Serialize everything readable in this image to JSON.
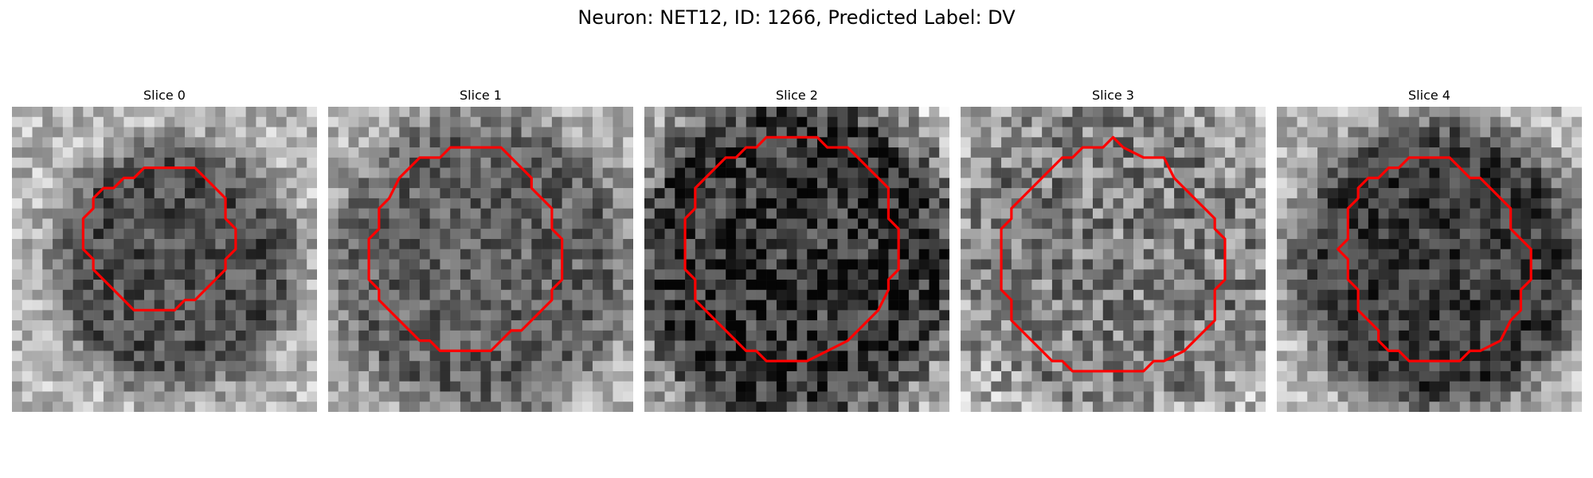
{
  "figure": {
    "title": "Neuron: NET12, ID: 1266, Predicted Label: DV"
  },
  "panels": [
    {
      "title": "Slice 0",
      "seed": 11,
      "contrast": "medium",
      "blob_darkness": 0.55,
      "blob_center": [
        0.53,
        0.52
      ],
      "blob_radius": 0.34,
      "roi_outline": [
        [
          15,
          6
        ],
        [
          18,
          6
        ],
        [
          21,
          9
        ],
        [
          21,
          11
        ],
        [
          22,
          12
        ],
        [
          22,
          14
        ],
        [
          21,
          15
        ],
        [
          21,
          16
        ],
        [
          18,
          19
        ],
        [
          17,
          19
        ],
        [
          16,
          20
        ],
        [
          13,
          20
        ],
        [
          12,
          20
        ],
        [
          10,
          18
        ],
        [
          9,
          17
        ],
        [
          8,
          16
        ],
        [
          8,
          15
        ],
        [
          7,
          14
        ],
        [
          7,
          11
        ],
        [
          8,
          10
        ],
        [
          8,
          9
        ],
        [
          9,
          8
        ],
        [
          10,
          8
        ],
        [
          11,
          7
        ],
        [
          12,
          7
        ],
        [
          13,
          6
        ]
      ]
    },
    {
      "title": "Slice 1",
      "seed": 23,
      "contrast": "medium",
      "blob_darkness": 0.45,
      "blob_center": [
        0.5,
        0.52
      ],
      "blob_radius": 0.42,
      "roi_outline": [
        [
          14,
          4
        ],
        [
          17,
          4
        ],
        [
          18,
          5
        ],
        [
          19,
          6
        ],
        [
          20,
          7
        ],
        [
          20,
          8
        ],
        [
          21,
          9
        ],
        [
          22,
          10
        ],
        [
          22,
          12
        ],
        [
          23,
          13
        ],
        [
          23,
          17
        ],
        [
          22,
          18
        ],
        [
          22,
          19
        ],
        [
          21,
          20
        ],
        [
          20,
          21
        ],
        [
          19,
          22
        ],
        [
          18,
          22
        ],
        [
          17,
          23
        ],
        [
          16,
          24
        ],
        [
          11,
          24
        ],
        [
          10,
          23
        ],
        [
          9,
          23
        ],
        [
          8,
          22
        ],
        [
          7,
          21
        ],
        [
          6,
          20
        ],
        [
          5,
          19
        ],
        [
          5,
          18
        ],
        [
          4,
          17
        ],
        [
          4,
          13
        ],
        [
          5,
          12
        ],
        [
          5,
          10
        ],
        [
          6,
          9
        ],
        [
          7,
          7
        ],
        [
          8,
          6
        ],
        [
          9,
          5
        ],
        [
          11,
          5
        ],
        [
          12,
          4
        ]
      ]
    },
    {
      "title": "Slice 2",
      "seed": 37,
      "contrast": "high",
      "blob_darkness": 0.7,
      "blob_center": [
        0.5,
        0.5
      ],
      "blob_radius": 0.46,
      "roi_outline": [
        [
          12,
          3
        ],
        [
          17,
          3
        ],
        [
          18,
          4
        ],
        [
          20,
          4
        ],
        [
          21,
          5
        ],
        [
          22,
          6
        ],
        [
          23,
          7
        ],
        [
          24,
          8
        ],
        [
          24,
          11
        ],
        [
          25,
          12
        ],
        [
          25,
          16
        ],
        [
          24,
          17
        ],
        [
          24,
          18
        ],
        [
          23,
          20
        ],
        [
          22,
          21
        ],
        [
          21,
          22
        ],
        [
          20,
          23
        ],
        [
          18,
          24
        ],
        [
          16,
          25
        ],
        [
          12,
          25
        ],
        [
          11,
          24
        ],
        [
          10,
          24
        ],
        [
          9,
          23
        ],
        [
          8,
          22
        ],
        [
          7,
          21
        ],
        [
          6,
          20
        ],
        [
          5,
          19
        ],
        [
          5,
          17
        ],
        [
          4,
          16
        ],
        [
          4,
          11
        ],
        [
          5,
          10
        ],
        [
          5,
          8
        ],
        [
          6,
          7
        ],
        [
          7,
          6
        ],
        [
          8,
          5
        ],
        [
          9,
          5
        ],
        [
          10,
          4
        ],
        [
          11,
          4
        ]
      ]
    },
    {
      "title": "Slice 3",
      "seed": 53,
      "contrast": "high",
      "blob_darkness": 0.3,
      "blob_center": [
        0.5,
        0.5
      ],
      "blob_radius": 0.44,
      "roi_outline": [
        [
          12,
          4
        ],
        [
          14,
          4
        ],
        [
          15,
          3
        ],
        [
          16,
          4
        ],
        [
          18,
          5
        ],
        [
          20,
          5
        ],
        [
          21,
          7
        ],
        [
          22,
          8
        ],
        [
          23,
          9
        ],
        [
          24,
          10
        ],
        [
          25,
          11
        ],
        [
          25,
          12
        ],
        [
          26,
          13
        ],
        [
          26,
          17
        ],
        [
          25,
          18
        ],
        [
          25,
          21
        ],
        [
          24,
          22
        ],
        [
          23,
          23
        ],
        [
          22,
          24
        ],
        [
          20,
          25
        ],
        [
          19,
          25
        ],
        [
          18,
          26
        ],
        [
          11,
          26
        ],
        [
          10,
          25
        ],
        [
          9,
          25
        ],
        [
          8,
          24
        ],
        [
          7,
          23
        ],
        [
          6,
          22
        ],
        [
          5,
          21
        ],
        [
          5,
          19
        ],
        [
          4,
          18
        ],
        [
          4,
          12
        ],
        [
          5,
          11
        ],
        [
          5,
          10
        ],
        [
          6,
          9
        ],
        [
          7,
          8
        ],
        [
          8,
          7
        ],
        [
          9,
          6
        ],
        [
          10,
          5
        ],
        [
          11,
          5
        ]
      ]
    },
    {
      "title": "Slice 4",
      "seed": 71,
      "contrast": "medium",
      "blob_darkness": 0.65,
      "blob_center": [
        0.53,
        0.52
      ],
      "blob_radius": 0.4,
      "roi_outline": [
        [
          13,
          5
        ],
        [
          17,
          5
        ],
        [
          18,
          6
        ],
        [
          19,
          7
        ],
        [
          20,
          7
        ],
        [
          21,
          8
        ],
        [
          22,
          9
        ],
        [
          23,
          10
        ],
        [
          23,
          12
        ],
        [
          24,
          13
        ],
        [
          25,
          14
        ],
        [
          25,
          17
        ],
        [
          24,
          18
        ],
        [
          24,
          20
        ],
        [
          23,
          21
        ],
        [
          22,
          23
        ],
        [
          20,
          24
        ],
        [
          19,
          24
        ],
        [
          18,
          25
        ],
        [
          13,
          25
        ],
        [
          12,
          24
        ],
        [
          11,
          24
        ],
        [
          10,
          23
        ],
        [
          10,
          22
        ],
        [
          9,
          21
        ],
        [
          8,
          20
        ],
        [
          8,
          18
        ],
        [
          7,
          17
        ],
        [
          7,
          15
        ],
        [
          6,
          14
        ],
        [
          7,
          13
        ],
        [
          7,
          10
        ],
        [
          8,
          9
        ],
        [
          8,
          8
        ],
        [
          9,
          7
        ],
        [
          10,
          7
        ],
        [
          11,
          6
        ],
        [
          12,
          6
        ]
      ]
    }
  ],
  "colors": {
    "outline": "#ff0000",
    "text": "#000000",
    "background": "#ffffff"
  }
}
